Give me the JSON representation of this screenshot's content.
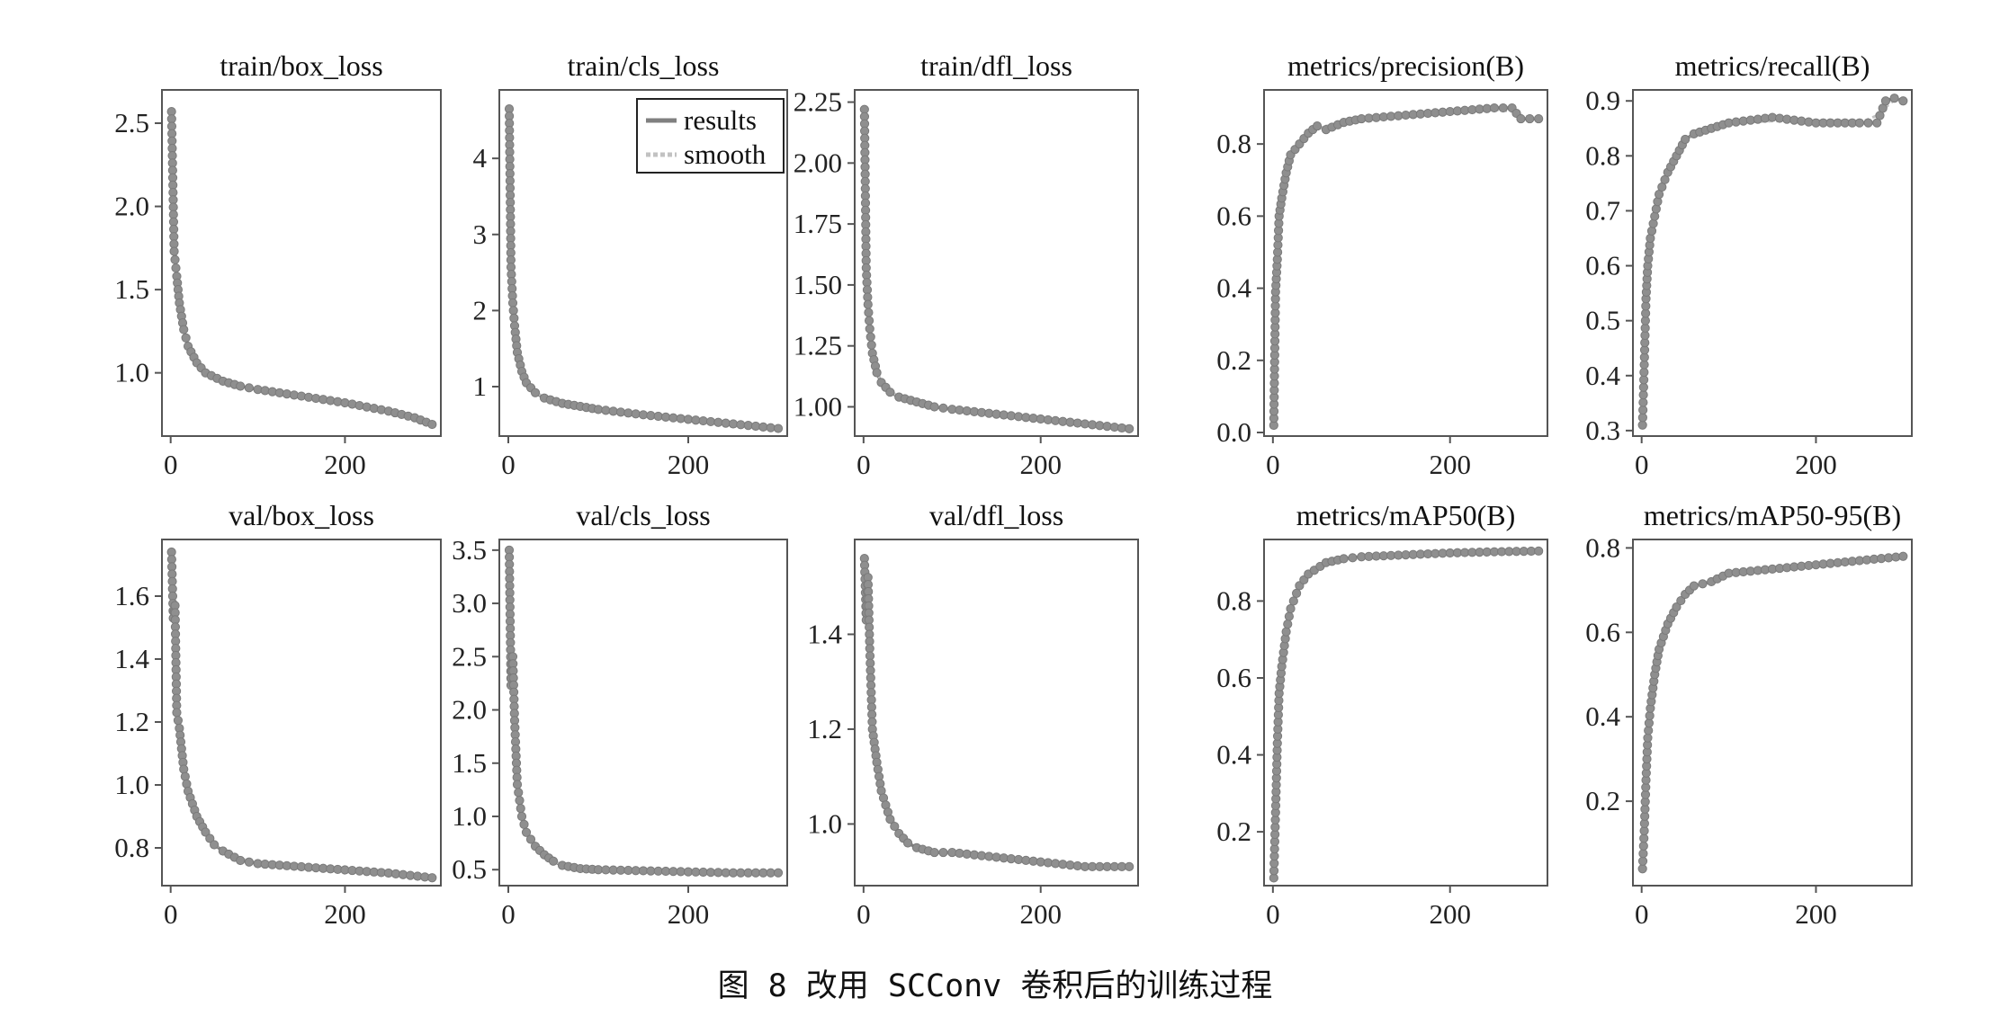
{
  "caption": "图 8   改用 SCConv 卷积后的训练过程",
  "legend": {
    "results": "results",
    "smooth": "smooth"
  },
  "colors": {
    "results": "#808080",
    "smooth": "#c2c2c2",
    "marker": "#8f8f8f",
    "frame": "#555555"
  },
  "chart_data": [
    {
      "type": "line",
      "title": "train/box_loss",
      "grid": false,
      "xlim": [
        -10,
        310
      ],
      "ylim": [
        0.62,
        2.7
      ],
      "xticks": [
        0,
        200
      ],
      "xticklabels": [
        "0",
        "200"
      ],
      "yticks": [
        1.0,
        1.5,
        2.0,
        2.5
      ],
      "yticklabels": [
        "1.0",
        "1.5",
        "2.0",
        "2.5"
      ],
      "series": [
        {
          "name": "results",
          "x": [
            1,
            4,
            7,
            10,
            15,
            20,
            30,
            40,
            60,
            80,
            100,
            150,
            200,
            250,
            280,
            300
          ],
          "y": [
            2.57,
            1.73,
            1.58,
            1.42,
            1.26,
            1.16,
            1.06,
            1.0,
            0.95,
            0.92,
            0.9,
            0.86,
            0.82,
            0.77,
            0.73,
            0.69
          ]
        }
      ]
    },
    {
      "type": "line",
      "title": "train/cls_loss",
      "grid": false,
      "xlim": [
        -10,
        310
      ],
      "ylim": [
        0.35,
        4.9
      ],
      "xticks": [
        0,
        200
      ],
      "xticklabels": [
        "0",
        "200"
      ],
      "yticks": [
        1,
        2,
        3,
        4
      ],
      "yticklabels": [
        "1",
        "2",
        "3",
        "4"
      ],
      "series": [
        {
          "name": "results",
          "x": [
            1,
            3,
            5,
            7,
            10,
            15,
            20,
            30,
            40,
            60,
            80,
            100,
            150,
            200,
            250,
            300
          ],
          "y": [
            4.65,
            2.57,
            2.1,
            1.8,
            1.45,
            1.2,
            1.05,
            0.92,
            0.85,
            0.78,
            0.74,
            0.7,
            0.63,
            0.57,
            0.51,
            0.45
          ]
        }
      ]
    },
    {
      "type": "line",
      "title": "train/dfl_loss",
      "grid": false,
      "xlim": [
        -10,
        310
      ],
      "ylim": [
        0.88,
        2.3
      ],
      "xticks": [
        0,
        200
      ],
      "xticklabels": [
        "0",
        "200"
      ],
      "yticks": [
        1.0,
        1.25,
        1.5,
        1.75,
        2.0,
        2.25
      ],
      "yticklabels": [
        "1.00",
        "1.25",
        "1.50",
        "1.75",
        "2.00",
        "2.25"
      ],
      "series": [
        {
          "name": "results",
          "x": [
            1,
            3,
            5,
            7,
            10,
            15,
            20,
            30,
            40,
            60,
            80,
            100,
            150,
            200,
            250,
            300
          ],
          "y": [
            2.22,
            1.57,
            1.42,
            1.32,
            1.22,
            1.14,
            1.1,
            1.06,
            1.04,
            1.02,
            1.0,
            0.99,
            0.97,
            0.95,
            0.93,
            0.91
          ]
        }
      ]
    },
    {
      "type": "line",
      "title": "metrics/precision(B)",
      "grid": false,
      "xlim": [
        -10,
        310
      ],
      "ylim": [
        -0.01,
        0.95
      ],
      "xticks": [
        0,
        200
      ],
      "xticklabels": [
        "0",
        "200"
      ],
      "yticks": [
        0.0,
        0.2,
        0.4,
        0.6,
        0.8
      ],
      "yticklabels": [
        "0.0",
        "0.2",
        "0.4",
        "0.6",
        "0.8"
      ],
      "series": [
        {
          "name": "results",
          "x": [
            1,
            3,
            5,
            7,
            10,
            15,
            20,
            30,
            40,
            50,
            60,
            80,
            100,
            150,
            200,
            250,
            270,
            280,
            300
          ],
          "y": [
            0.02,
            0.39,
            0.48,
            0.6,
            0.65,
            0.72,
            0.77,
            0.8,
            0.83,
            0.85,
            0.84,
            0.86,
            0.87,
            0.88,
            0.89,
            0.9,
            0.9,
            0.87,
            0.87
          ]
        }
      ]
    },
    {
      "type": "line",
      "title": "metrics/recall(B)",
      "grid": false,
      "xlim": [
        -10,
        310
      ],
      "ylim": [
        0.29,
        0.92
      ],
      "xticks": [
        0,
        200
      ],
      "xticklabels": [
        "0",
        "200"
      ],
      "yticks": [
        0.3,
        0.4,
        0.5,
        0.6,
        0.7,
        0.8,
        0.9
      ],
      "yticklabels": [
        "0.3",
        "0.4",
        "0.5",
        "0.6",
        "0.7",
        "0.8",
        "0.9"
      ],
      "series": [
        {
          "name": "results",
          "x": [
            1,
            3,
            5,
            7,
            10,
            15,
            20,
            30,
            40,
            50,
            60,
            80,
            100,
            150,
            200,
            250,
            270,
            280,
            290,
            300
          ],
          "y": [
            0.31,
            0.42,
            0.54,
            0.6,
            0.65,
            0.69,
            0.73,
            0.77,
            0.8,
            0.83,
            0.84,
            0.85,
            0.86,
            0.87,
            0.86,
            0.86,
            0.86,
            0.9,
            0.905,
            0.9
          ]
        }
      ]
    },
    {
      "type": "line",
      "title": "val/box_loss",
      "grid": false,
      "xlim": [
        -10,
        310
      ],
      "ylim": [
        0.68,
        1.78
      ],
      "xticks": [
        0,
        200
      ],
      "xticklabels": [
        "0",
        "200"
      ],
      "yticks": [
        0.8,
        1.0,
        1.2,
        1.4,
        1.6
      ],
      "yticklabels": [
        "0.8",
        "1.0",
        "1.2",
        "1.4",
        "1.6"
      ],
      "series": [
        {
          "name": "results",
          "x": [
            1,
            3,
            5,
            7,
            10,
            15,
            20,
            30,
            40,
            50,
            60,
            80,
            100,
            150,
            200,
            250,
            300
          ],
          "y": [
            1.74,
            1.53,
            1.57,
            1.23,
            1.18,
            1.05,
            0.98,
            0.9,
            0.85,
            0.81,
            0.79,
            0.76,
            0.75,
            0.74,
            0.73,
            0.72,
            0.705
          ]
        }
      ]
    },
    {
      "type": "line",
      "title": "val/cls_loss",
      "grid": false,
      "xlim": [
        -10,
        310
      ],
      "ylim": [
        0.35,
        3.6
      ],
      "xticks": [
        0,
        200
      ],
      "xticklabels": [
        "0",
        "200"
      ],
      "yticks": [
        0.5,
        1.0,
        1.5,
        2.0,
        2.5,
        3.0,
        3.5
      ],
      "yticklabels": [
        "0.5",
        "1.0",
        "1.5",
        "2.0",
        "2.5",
        "3.0",
        "3.5"
      ],
      "series": [
        {
          "name": "results",
          "x": [
            1,
            3,
            5,
            7,
            10,
            15,
            20,
            30,
            40,
            50,
            60,
            80,
            100,
            150,
            200,
            250,
            300
          ],
          "y": [
            3.5,
            2.23,
            2.5,
            1.9,
            1.3,
            1.0,
            0.85,
            0.72,
            0.64,
            0.58,
            0.54,
            0.51,
            0.5,
            0.49,
            0.48,
            0.47,
            0.47
          ]
        }
      ]
    },
    {
      "type": "line",
      "title": "val/dfl_loss",
      "grid": false,
      "xlim": [
        -10,
        310
      ],
      "ylim": [
        0.87,
        1.6
      ],
      "xticks": [
        0,
        200
      ],
      "xticklabels": [
        "0",
        "200"
      ],
      "yticks": [
        1.0,
        1.2,
        1.4
      ],
      "yticklabels": [
        "1.0",
        "1.2",
        "1.4"
      ],
      "series": [
        {
          "name": "results",
          "x": [
            1,
            3,
            5,
            7,
            10,
            15,
            20,
            30,
            40,
            50,
            60,
            80,
            100,
            150,
            200,
            250,
            300
          ],
          "y": [
            1.56,
            1.43,
            1.52,
            1.37,
            1.2,
            1.13,
            1.07,
            1.01,
            0.98,
            0.96,
            0.95,
            0.94,
            0.94,
            0.93,
            0.92,
            0.91,
            0.91
          ]
        }
      ]
    },
    {
      "type": "line",
      "title": "metrics/mAP50(B)",
      "grid": false,
      "xlim": [
        -10,
        310
      ],
      "ylim": [
        0.06,
        0.96
      ],
      "xticks": [
        0,
        200
      ],
      "xticklabels": [
        "0",
        "200"
      ],
      "yticks": [
        0.2,
        0.4,
        0.6,
        0.8
      ],
      "yticklabels": [
        "0.2",
        "0.4",
        "0.6",
        "0.8"
      ],
      "series": [
        {
          "name": "results",
          "x": [
            1,
            3,
            5,
            7,
            10,
            15,
            20,
            30,
            40,
            60,
            80,
            100,
            150,
            200,
            250,
            300
          ],
          "y": [
            0.08,
            0.25,
            0.43,
            0.56,
            0.63,
            0.72,
            0.78,
            0.84,
            0.87,
            0.9,
            0.91,
            0.915,
            0.92,
            0.925,
            0.928,
            0.93
          ]
        }
      ]
    },
    {
      "type": "line",
      "title": "metrics/mAP50-95(B)",
      "grid": false,
      "xlim": [
        -10,
        310
      ],
      "ylim": [
        0.0,
        0.82
      ],
      "xticks": [
        0,
        200
      ],
      "xticklabels": [
        "0",
        "200"
      ],
      "yticks": [
        0.2,
        0.4,
        0.6,
        0.8
      ],
      "yticklabels": [
        "0.2",
        "0.4",
        "0.6",
        "0.8"
      ],
      "series": [
        {
          "name": "results",
          "x": [
            1,
            3,
            5,
            7,
            10,
            15,
            20,
            30,
            40,
            50,
            60,
            80,
            100,
            150,
            200,
            250,
            300
          ],
          "y": [
            0.04,
            0.13,
            0.25,
            0.35,
            0.42,
            0.5,
            0.56,
            0.62,
            0.66,
            0.69,
            0.71,
            0.72,
            0.74,
            0.75,
            0.76,
            0.77,
            0.78
          ]
        }
      ]
    }
  ]
}
